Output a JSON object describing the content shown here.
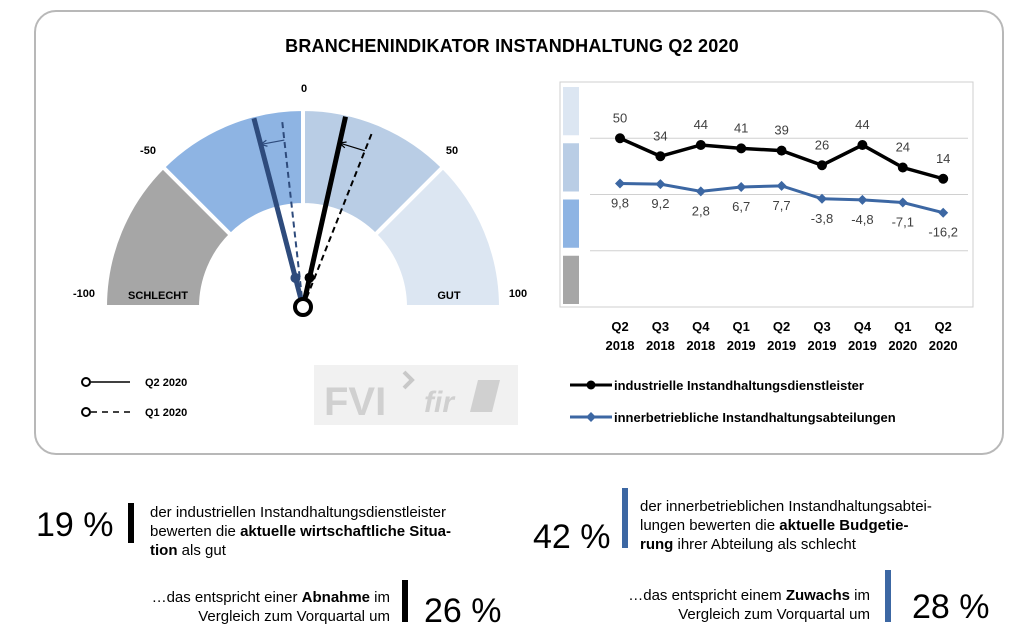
{
  "title": "BRANCHENINDIKATOR INSTANDHALTUNG Q2 2020",
  "gauge": {
    "scale_labels": [
      "-100",
      "-50",
      "0",
      "50",
      "100"
    ],
    "zone_labels": {
      "bad": "SCHLECHT",
      "good": "GUT"
    },
    "zone_colors": [
      "#a6a6a6",
      "#8eb4e3",
      "#b9cde5",
      "#dce6f2"
    ],
    "needles": [
      {
        "series": "industrielle Instandhaltungsdienstleister",
        "q2_2020": 14,
        "q1_2020": 24,
        "color": "#000000"
      },
      {
        "series": "innerbetriebliche Instandhaltungsabteilungen",
        "q2_2020": -16.2,
        "q1_2020": -7.1,
        "color": "#2e4b7c"
      }
    ],
    "legend": [
      {
        "label": "Q2 2020",
        "style": "solid"
      },
      {
        "label": "Q1 2020",
        "style": "dashed"
      }
    ]
  },
  "logo": {
    "left": "FVI",
    "right": "fir"
  },
  "chart_data": {
    "type": "line",
    "categories": [
      [
        "Q2",
        "2018"
      ],
      [
        "Q3",
        "2018"
      ],
      [
        "Q4",
        "2018"
      ],
      [
        "Q1",
        "2019"
      ],
      [
        "Q2",
        "2019"
      ],
      [
        "Q3",
        "2019"
      ],
      [
        "Q4",
        "2019"
      ],
      [
        "Q1",
        "2020"
      ],
      [
        "Q2",
        "2020"
      ]
    ],
    "series": [
      {
        "name": "industrielle Instandhaltungsdienstleister",
        "values": [
          50,
          34,
          44,
          41,
          39,
          26,
          44,
          24,
          14
        ],
        "labels": [
          "50",
          "34",
          "44",
          "41",
          "39",
          "26",
          "44",
          "24",
          "14"
        ],
        "color": "#000000",
        "marker": "circle"
      },
      {
        "name": "innerbetriebliche Instandhaltungsabteilungen",
        "values": [
          9.8,
          9.2,
          2.8,
          6.7,
          7.7,
          -3.8,
          -4.8,
          -7.1,
          -16.2
        ],
        "labels": [
          "9,8",
          "9,2",
          "2,8",
          "6,7",
          "7,7",
          "-3,8",
          "-4,8",
          "-7,1",
          "-16,2"
        ],
        "color": "#3c67a3",
        "marker": "diamond"
      }
    ],
    "ylim": [
      -100,
      100
    ],
    "band_colors": [
      "#dce6f2",
      "#b9cde5",
      "#8eb4e3",
      "#a6a6a6"
    ],
    "legend_position": "bottom"
  },
  "stats": {
    "s1": {
      "pct": "19 %",
      "line1": "der industriellen Instandhaltungsdienstleister",
      "line2_pre": "bewerten die ",
      "line2_bold": "aktuelle wirtschaftliche Situa-",
      "line3_bold": "tion",
      "line3_post": " als gut"
    },
    "s2": {
      "pct": "42 %",
      "line1": "der innerbetrieblichen Instandhaltungsabtei-",
      "line2_pre": "lungen bewerten die ",
      "line2_bold": "aktuelle Budgetie-",
      "line3_bold": "rung",
      "line3_post": " ihrer Abteilung als schlecht"
    },
    "s3": {
      "pre": "…das entspricht einer ",
      "bold": "Abnahme",
      "post": " im",
      "line2": "Vergleich zum Vorquartal um",
      "pct": "26 %"
    },
    "s4": {
      "pre": "…das entspricht einem ",
      "bold": "Zuwachs",
      "post": " im",
      "line2": "Vergleich zum Vorquartal um",
      "pct": "28 %"
    }
  }
}
